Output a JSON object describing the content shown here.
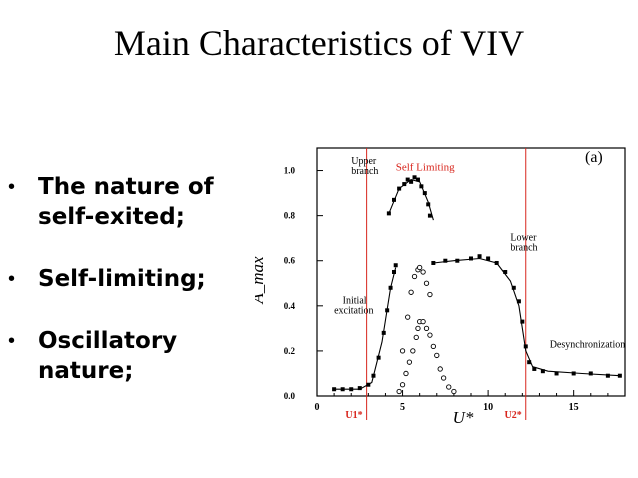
{
  "slide": {
    "title": "Main Characteristics of VIV",
    "bullets": [
      {
        "marker": "•",
        "line1": "The nature of",
        "line2": "self-exited;"
      },
      {
        "marker": "•",
        "line1": "Self-limiting;",
        "line2": ""
      },
      {
        "marker": "•",
        "line1": "Oscillatory",
        "line2": "nature;"
      }
    ]
  },
  "chart_data": {
    "type": "scatter",
    "panel_label": "(a)",
    "xlabel": "U*",
    "ylabel": "A_max",
    "xlim": [
      0,
      18
    ],
    "ylim": [
      0,
      1.1
    ],
    "x_ticks": [
      0,
      5,
      10,
      15
    ],
    "y_ticks": [
      "0.0",
      "0.2",
      "0.4",
      "0.6",
      "0.8",
      "1.0"
    ],
    "annotations": {
      "self_limiting": "Self Limiting",
      "upper_branch_1": "Upper",
      "upper_branch_2": "branch",
      "lower_branch_1": "Lower",
      "lower_branch_2": "branch",
      "initial_excitation_1": "Initial",
      "initial_excitation_2": "excitation",
      "desynchronization": "Desynchronization",
      "u1": "U1*",
      "u2": "U2*"
    },
    "red_lines_x": [
      2.9,
      12.2
    ],
    "colors": {
      "annotation_red": "#d8251c",
      "ink": "#000000"
    },
    "series": [
      {
        "marker": "filled-square",
        "points": [
          [
            1.0,
            0.03
          ],
          [
            1.5,
            0.03
          ],
          [
            2.0,
            0.03
          ],
          [
            2.5,
            0.035
          ],
          [
            3.0,
            0.05
          ],
          [
            3.3,
            0.09
          ],
          [
            3.6,
            0.17
          ],
          [
            3.9,
            0.28
          ],
          [
            4.1,
            0.38
          ],
          [
            4.3,
            0.48
          ],
          [
            4.5,
            0.55
          ],
          [
            4.6,
            0.58
          ],
          [
            4.2,
            0.81
          ],
          [
            4.5,
            0.87
          ],
          [
            4.8,
            0.92
          ],
          [
            5.1,
            0.94
          ],
          [
            5.3,
            0.96
          ],
          [
            5.5,
            0.95
          ],
          [
            5.7,
            0.97
          ],
          [
            5.9,
            0.96
          ],
          [
            6.1,
            0.93
          ],
          [
            6.3,
            0.9
          ],
          [
            6.5,
            0.85
          ],
          [
            6.6,
            0.8
          ],
          [
            6.8,
            0.59
          ],
          [
            7.5,
            0.6
          ],
          [
            8.2,
            0.6
          ],
          [
            9.0,
            0.61
          ],
          [
            9.5,
            0.62
          ],
          [
            10.0,
            0.61
          ],
          [
            10.5,
            0.59
          ],
          [
            11.0,
            0.55
          ],
          [
            11.5,
            0.48
          ],
          [
            11.8,
            0.42
          ],
          [
            12.0,
            0.33
          ],
          [
            12.2,
            0.22
          ],
          [
            12.4,
            0.15
          ],
          [
            12.7,
            0.12
          ],
          [
            13.2,
            0.11
          ],
          [
            14.0,
            0.1
          ],
          [
            15.0,
            0.1
          ],
          [
            16.0,
            0.1
          ],
          [
            17.0,
            0.09
          ],
          [
            17.7,
            0.09
          ]
        ]
      },
      {
        "marker": "open-circle",
        "points": [
          [
            4.8,
            0.02
          ],
          [
            5.0,
            0.05
          ],
          [
            5.2,
            0.1
          ],
          [
            5.4,
            0.15
          ],
          [
            5.6,
            0.2
          ],
          [
            5.8,
            0.26
          ],
          [
            5.9,
            0.3
          ],
          [
            6.0,
            0.33
          ],
          [
            6.2,
            0.33
          ],
          [
            6.4,
            0.3
          ],
          [
            6.6,
            0.27
          ],
          [
            6.8,
            0.22
          ],
          [
            7.0,
            0.18
          ],
          [
            7.2,
            0.12
          ],
          [
            7.4,
            0.08
          ],
          [
            7.7,
            0.04
          ],
          [
            8.0,
            0.02
          ],
          [
            5.0,
            0.2
          ],
          [
            5.3,
            0.35
          ],
          [
            5.5,
            0.46
          ],
          [
            5.7,
            0.53
          ],
          [
            5.9,
            0.56
          ],
          [
            6.0,
            0.57
          ],
          [
            6.2,
            0.55
          ],
          [
            6.4,
            0.5
          ],
          [
            6.6,
            0.45
          ]
        ]
      }
    ],
    "fit_curves": [
      [
        [
          1.0,
          0.03
        ],
        [
          2.5,
          0.03
        ],
        [
          3.2,
          0.06
        ],
        [
          3.8,
          0.24
        ],
        [
          4.3,
          0.48
        ],
        [
          4.6,
          0.57
        ]
      ],
      [
        [
          4.2,
          0.81
        ],
        [
          4.8,
          0.92
        ],
        [
          5.5,
          0.96
        ],
        [
          6.0,
          0.95
        ],
        [
          6.5,
          0.86
        ],
        [
          6.8,
          0.78
        ]
      ],
      [
        [
          6.8,
          0.59
        ],
        [
          8.0,
          0.6
        ],
        [
          9.5,
          0.61
        ],
        [
          10.5,
          0.59
        ],
        [
          11.3,
          0.51
        ],
        [
          11.8,
          0.4
        ],
        [
          12.2,
          0.2
        ],
        [
          12.6,
          0.13
        ],
        [
          13.5,
          0.11
        ],
        [
          15.5,
          0.1
        ],
        [
          17.7,
          0.09
        ]
      ]
    ]
  }
}
